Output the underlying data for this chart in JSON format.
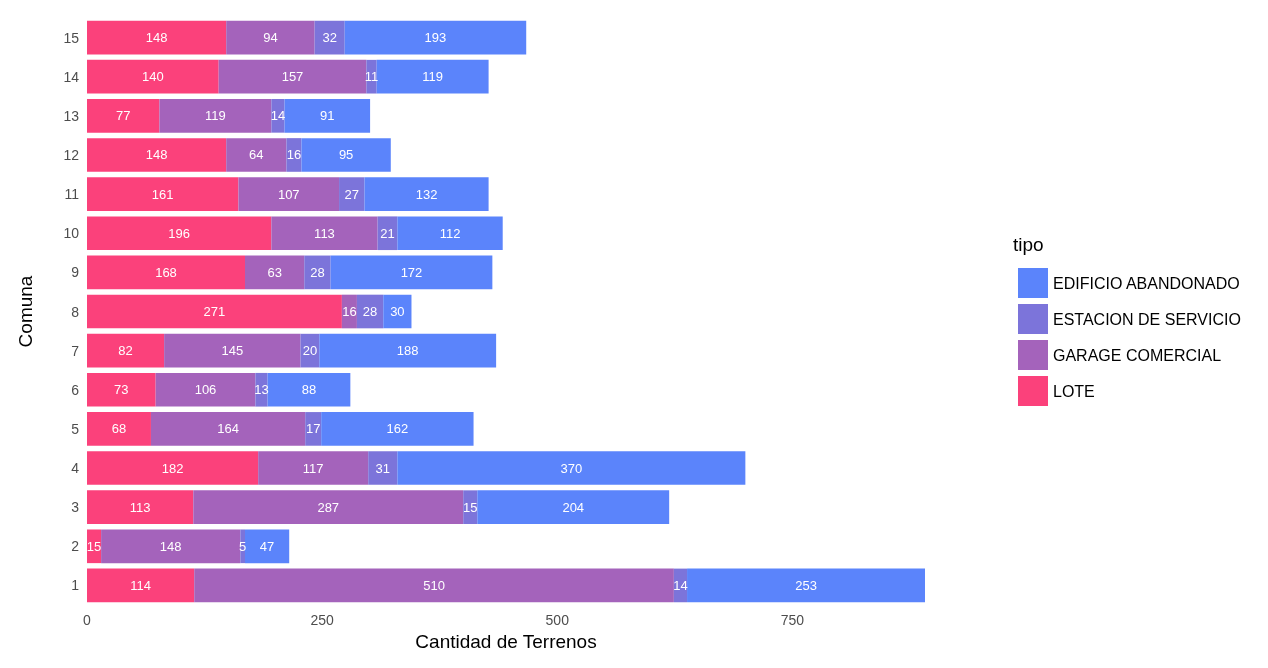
{
  "chart_data": {
    "type": "bar",
    "orientation": "horizontal",
    "stacked": true,
    "data_labels": true,
    "grid": false,
    "legend": "right",
    "legend_title": "tipo",
    "xlabel": "Cantidad de Terrenos",
    "ylabel": "Comuna",
    "categories": [
      "15",
      "14",
      "13",
      "12",
      "11",
      "10",
      "9",
      "8",
      "7",
      "6",
      "5",
      "4",
      "3",
      "2",
      "1"
    ],
    "xlim": [
      0,
      891
    ],
    "xticks": [
      0,
      250,
      500,
      750
    ],
    "series": [
      {
        "name": "LOTE",
        "color": "#fb417b",
        "values": [
          148,
          140,
          77,
          148,
          161,
          196,
          168,
          271,
          82,
          73,
          68,
          182,
          113,
          15,
          114
        ]
      },
      {
        "name": "GARAGE COMERCIAL",
        "color": "#a463bb",
        "values": [
          94,
          157,
          119,
          64,
          107,
          113,
          63,
          16,
          145,
          106,
          164,
          117,
          287,
          148,
          510
        ]
      },
      {
        "name": "ESTACION DE SERVICIO",
        "color": "#7c74da",
        "values": [
          32,
          11,
          14,
          16,
          27,
          21,
          28,
          28,
          20,
          13,
          17,
          31,
          15,
          5,
          14
        ]
      },
      {
        "name": "EDIFICIO ABANDONADO",
        "color": "#5b84fb",
        "values": [
          193,
          119,
          91,
          95,
          132,
          112,
          172,
          30,
          188,
          88,
          162,
          370,
          204,
          47,
          253
        ]
      }
    ]
  }
}
